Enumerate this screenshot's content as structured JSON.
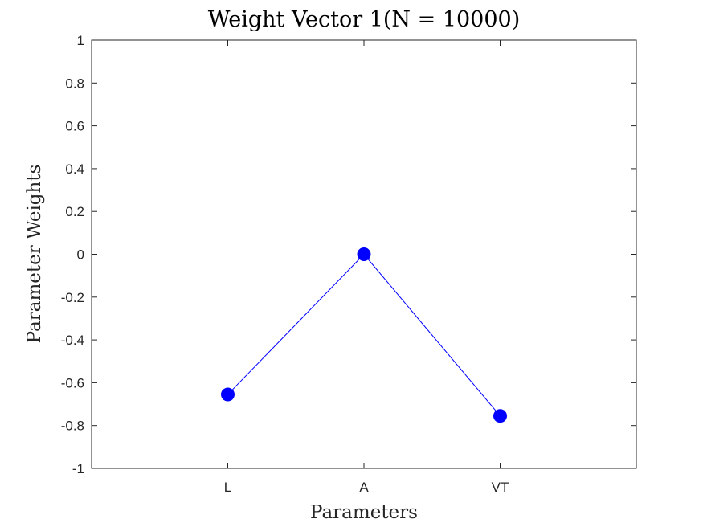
{
  "chart_data": {
    "type": "line",
    "title": "Weight Vector 1(N = 10000)",
    "xlabel": "Parameters",
    "ylabel": "Parameter Weights",
    "categories": [
      "L",
      "A",
      "VT"
    ],
    "series": [
      {
        "values": [
          -0.655,
          0.0,
          -0.755
        ],
        "color": "#0000ff",
        "marker": "circle"
      }
    ],
    "xlim": [
      0,
      4
    ],
    "ylim": [
      -1,
      1
    ],
    "yticks": [
      "-1",
      "-0.8",
      "-0.6",
      "-0.4",
      "-0.2",
      "0",
      "0.2",
      "0.4",
      "0.6",
      "0.8",
      "1"
    ],
    "grid": false,
    "box": true
  }
}
